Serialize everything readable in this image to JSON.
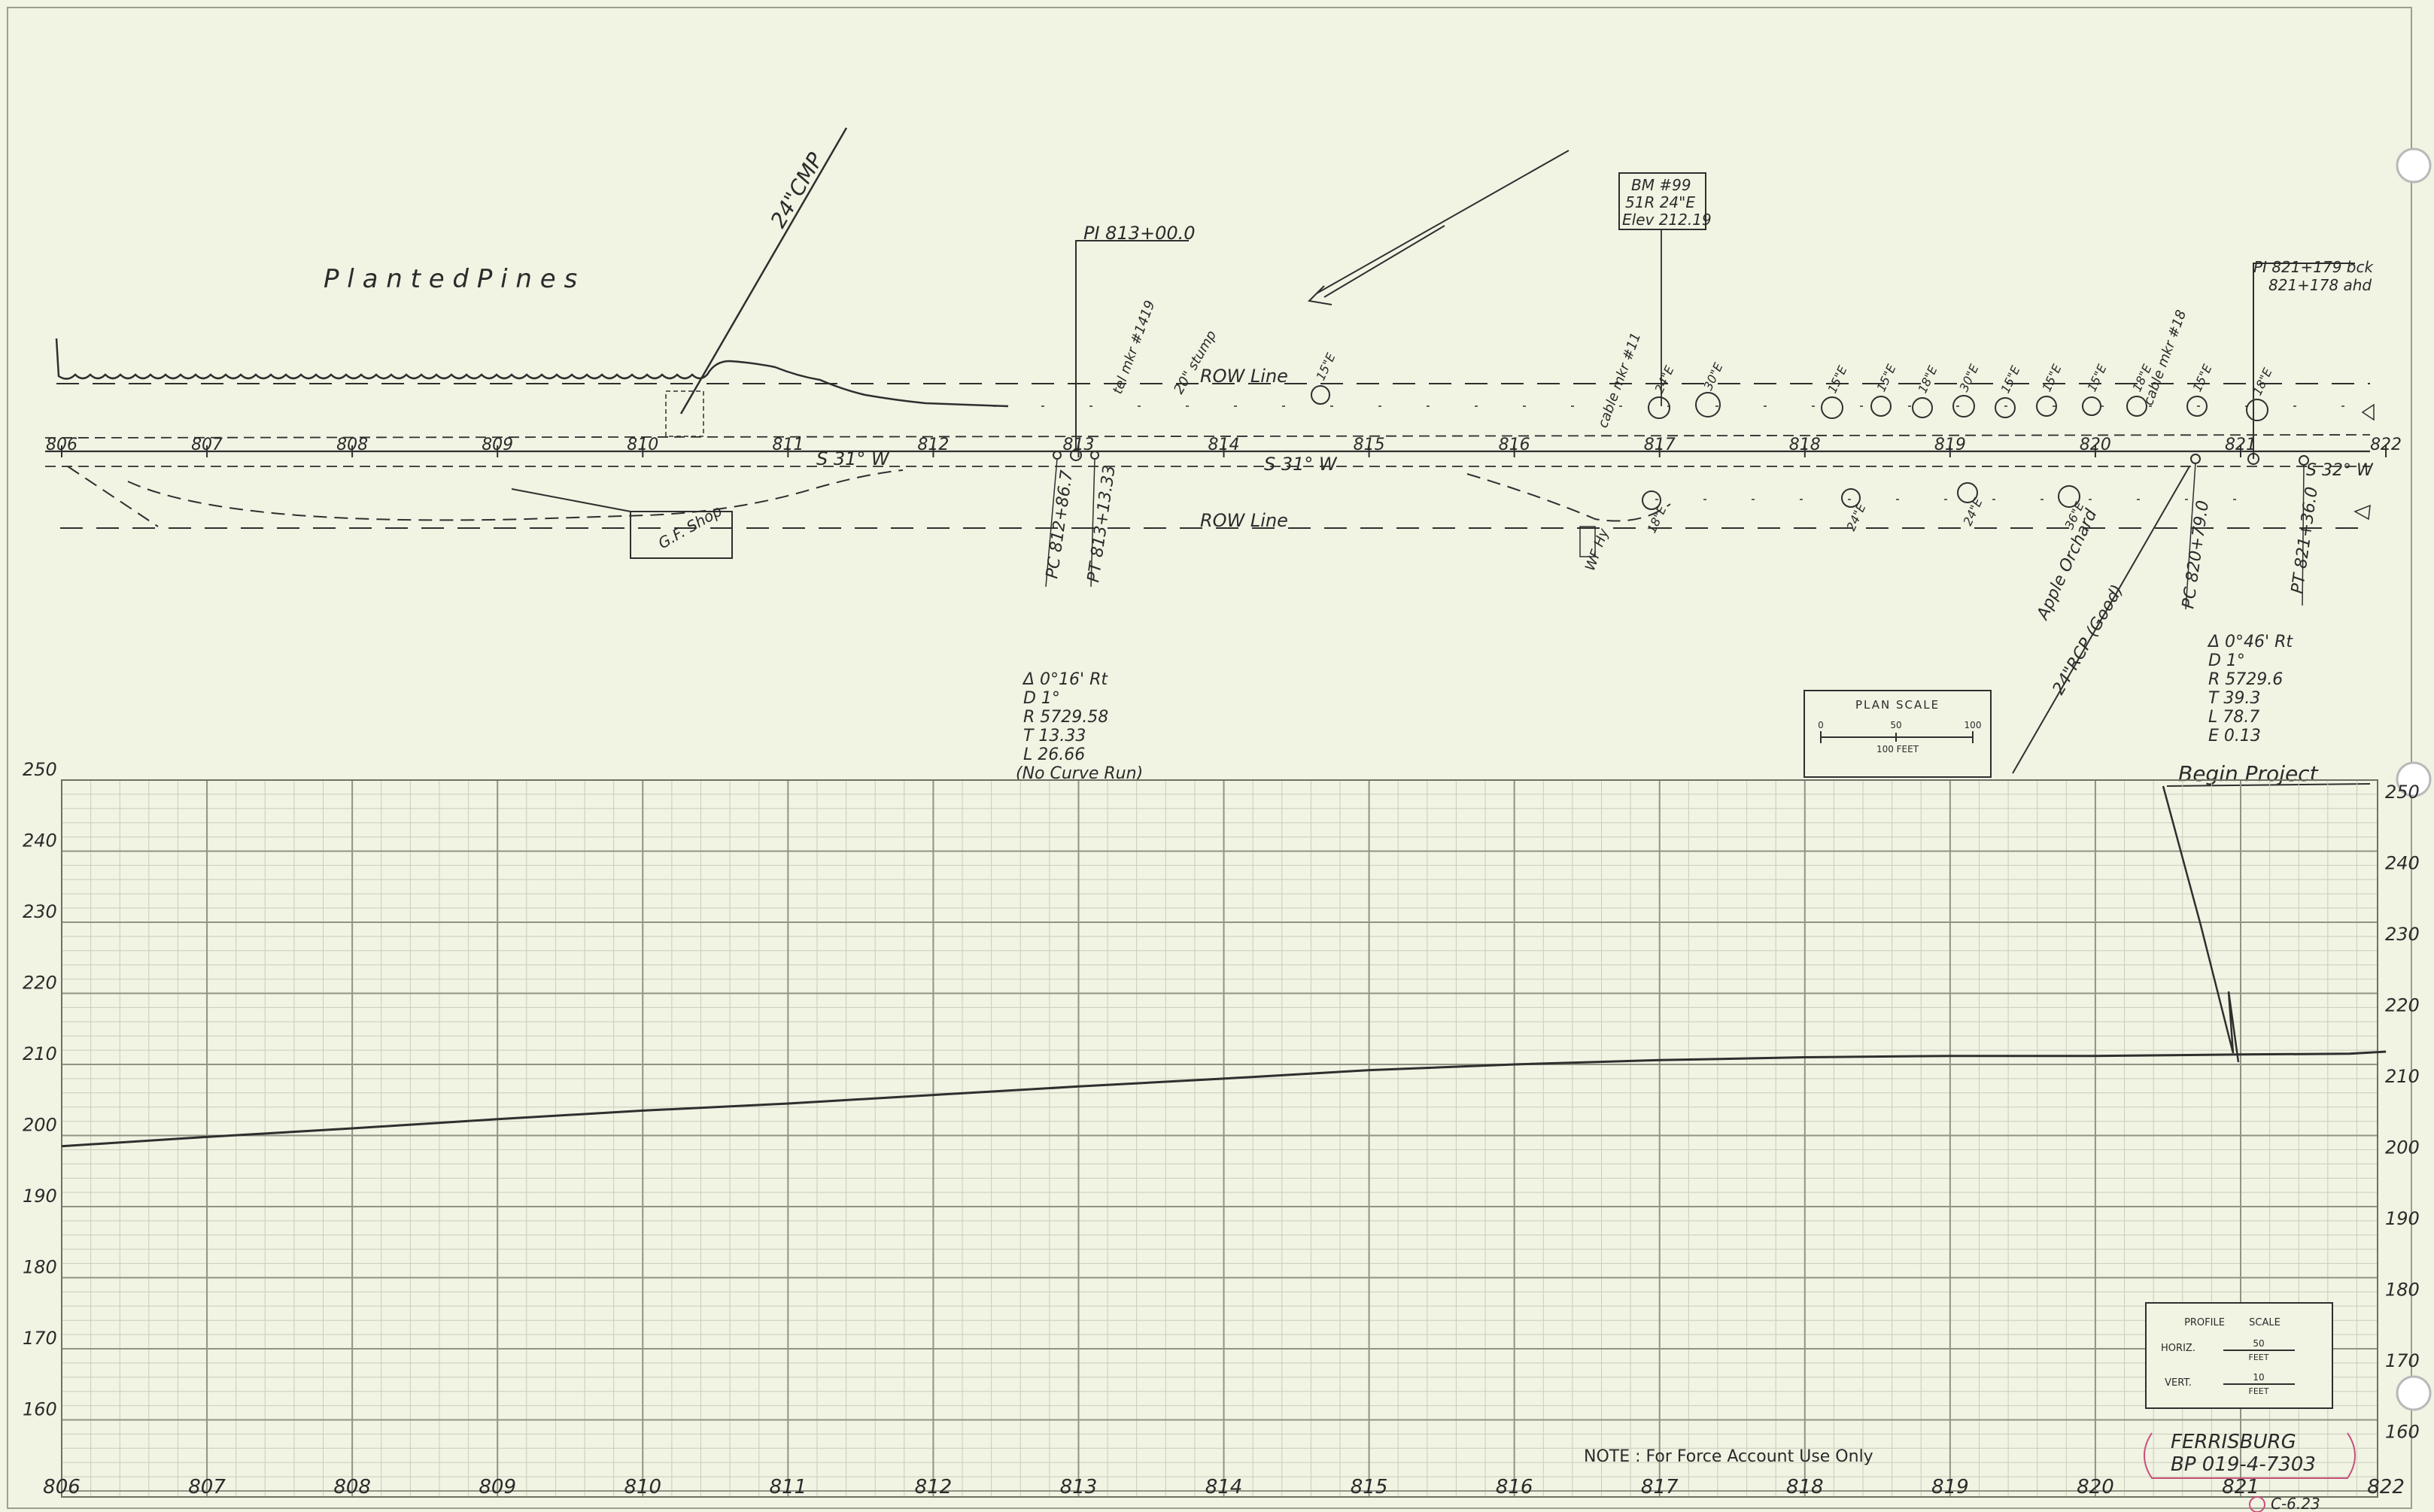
{
  "plan": {
    "planted_pines": "P l a n t e d   P i n e s",
    "cmp": "24\"CMP",
    "row_line_top": "ROW Line",
    "row_line_bottom": "ROW Line",
    "bearing_1": "S 31° W",
    "bearing_2": "S 31° W",
    "bearing_3": "S 32° W",
    "shop": "G.F. Shop",
    "stations": [
      "806",
      "807",
      "808",
      "809",
      "810",
      "811",
      "812",
      "813",
      "814",
      "815",
      "816",
      "817",
      "818",
      "819",
      "820",
      "821",
      "822"
    ],
    "pi_813": "PI 813+00.0",
    "pc_812": "PC 812+86.7",
    "pt_813": "PT 813+13.33",
    "pi_821_bck": "PI 821+179 bck",
    "pi_821_ahd": "821+178 ahd",
    "pc_820": "PC 820+79.0",
    "pt_821": "PT 821+36.0",
    "bm": [
      "BM #99",
      "51R 24\"E",
      "Elev 212.19"
    ],
    "apple_orchard": "Apple Orchard",
    "rcp": "24\"RCP (Good)",
    "wf_hy": "WF Hy",
    "cable_mkr_1": "cable mkr #11",
    "cable_mkr_2": "cable mkr #18",
    "tel_mkr": "tel mkr #1419",
    "stump": "20\" stump",
    "tree_labels": [
      "15\"E",
      "24\"E",
      "30\"E",
      "15\"E",
      "15\"E",
      "18\"E",
      "30\"E",
      "15\"E",
      "15\"E",
      "15\"E",
      "18\"E",
      "15\"E",
      "18\"E",
      "18\"E",
      "24\"E",
      "24\"E",
      "36\"E"
    ],
    "curve1": [
      "Δ 0°16' Rt",
      "D 1°",
      "R 5729.58",
      "T 13.33",
      "L 26.66",
      "(No Curve Run)"
    ],
    "curve2": [
      "Δ 0°46' Rt",
      "D 1°",
      "R 5729.6",
      "T 39.3",
      "L 78.7",
      "E 0.13"
    ],
    "plan_scale": {
      "title": "PLAN SCALE",
      "ticks": [
        "0",
        "50",
        "100"
      ],
      "unit": "100 FEET"
    },
    "begin_project": "Begin Project"
  },
  "profile": {
    "y_labels": [
      "250",
      "240",
      "230",
      "220",
      "210",
      "200",
      "190",
      "180",
      "170",
      "160"
    ],
    "x_labels": [
      "806",
      "807",
      "808",
      "809",
      "810",
      "811",
      "812",
      "813",
      "814",
      "815",
      "816",
      "817",
      "818",
      "819",
      "820",
      "821",
      "822"
    ],
    "profile_scale": {
      "header_left": "PROFILE",
      "header_right": "SCALE",
      "horiz": "HORIZ.",
      "horiz_val": "50",
      "vert": "VERT.",
      "vert_val": "10",
      "unit": "FEET"
    },
    "note": "NOTE : For Force Account Use Only",
    "stamp": [
      "FERRISBURG",
      "BP 019-4-7303"
    ],
    "sheet_no": "C-6.23"
  },
  "chart_data": {
    "type": "line",
    "xlabel": "",
    "ylabel": "",
    "xlim": [
      806,
      822
    ],
    "ylim": [
      150,
      250
    ],
    "grid": true,
    "series": [
      {
        "x": [
          806,
          807,
          808,
          809,
          810,
          811,
          812,
          813,
          814,
          815,
          816,
          817,
          818,
          819,
          820,
          821,
          821.75,
          822
        ],
        "values": [
          198.5,
          199.8,
          201.0,
          202.3,
          203.5,
          204.5,
          205.7,
          206.9,
          208.0,
          209.2,
          210.0,
          210.6,
          211.0,
          211.2,
          211.2,
          211.4,
          211.5,
          211.8
        ]
      }
    ]
  }
}
